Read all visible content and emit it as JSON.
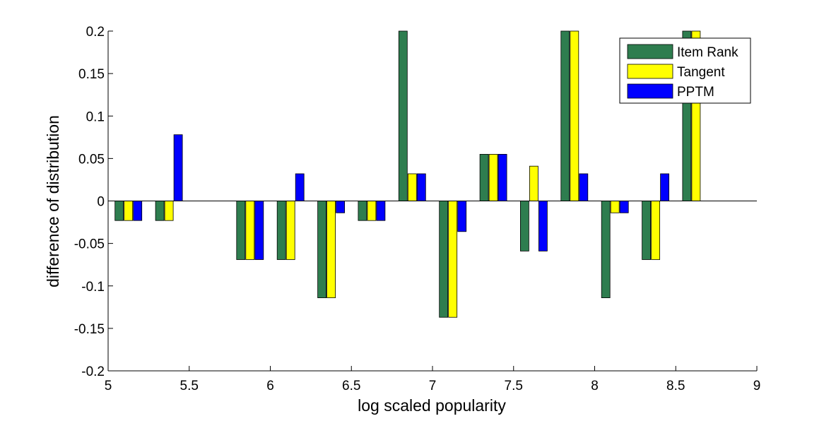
{
  "chart_data": {
    "type": "bar",
    "title": "",
    "xlabel": "log scaled popularity",
    "ylabel": "difference of distribution",
    "xlim": [
      5,
      9
    ],
    "ylim": [
      -0.2,
      0.2
    ],
    "xticks": [
      5,
      5.5,
      6,
      6.5,
      7,
      7.5,
      8,
      8.5,
      9
    ],
    "xtick_labels": [
      "5",
      "5.5",
      "6",
      "6.5",
      "7",
      "7.5",
      "8",
      "8.5",
      "9"
    ],
    "yticks": [
      -0.2,
      -0.15,
      -0.1,
      -0.05,
      0,
      0.05,
      0.1,
      0.15,
      0.2
    ],
    "ytick_labels": [
      "-0.2",
      "-0.15",
      "-0.1",
      "-0.05",
      "0",
      "0.05",
      "0.1",
      "0.15",
      "0.2"
    ],
    "grid": false,
    "legend_position": "top-right",
    "bin_centers": [
      5.125,
      5.375,
      5.875,
      6.125,
      6.375,
      6.625,
      6.875,
      7.125,
      7.375,
      7.625,
      7.875,
      8.125,
      8.375,
      8.625
    ],
    "series": [
      {
        "name": "Item Rank",
        "color": "#2e7d4f",
        "values": [
          -0.023,
          -0.023,
          -0.069,
          -0.069,
          -0.114,
          -0.023,
          0.2,
          -0.137,
          0.055,
          -0.059,
          0.2,
          -0.114,
          -0.069,
          0.2
        ]
      },
      {
        "name": "Tangent",
        "color": "#ffff00",
        "values": [
          -0.023,
          -0.023,
          -0.069,
          -0.069,
          -0.114,
          -0.023,
          0.032,
          -0.137,
          0.055,
          0.041,
          0.2,
          -0.014,
          -0.069,
          0.2
        ]
      },
      {
        "name": "PPTM",
        "color": "#0000ff",
        "values": [
          -0.023,
          0.078,
          -0.069,
          0.032,
          -0.014,
          -0.023,
          0.032,
          -0.036,
          0.055,
          -0.059,
          0.032,
          -0.014,
          0.032,
          null
        ]
      }
    ]
  }
}
